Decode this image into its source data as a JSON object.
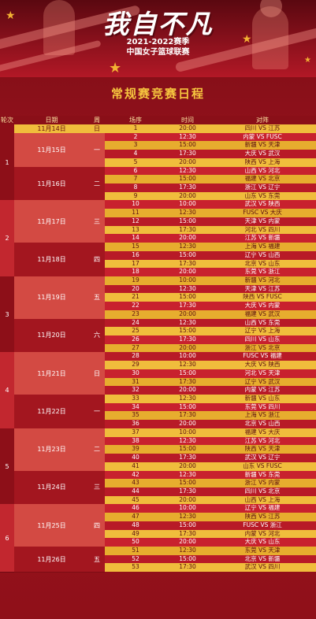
{
  "header": {
    "headline": "我自不凡",
    "season": "2021-2022赛季",
    "league": "中国女子篮球联赛"
  },
  "schedule_title": "常规赛竞赛日程",
  "columns": [
    "轮次",
    "日期",
    "周",
    "场序",
    "时间",
    "对阵"
  ],
  "colors": {
    "yellow_row": "#f0bd3c",
    "yellow_row_alt": "#e7ad2e",
    "red_row": "#c8212e",
    "red_row_alt": "#b81a27",
    "day_block_light": "#d34a43",
    "day_block_dark": "#a3161f",
    "round_dark": "#8d0f18",
    "round_light": "#c2272f",
    "accent_gold": "#f6c53f"
  },
  "rounds": [
    {
      "label": "1",
      "first": 0,
      "last": 8
    },
    {
      "label": "2",
      "first": 9,
      "last": 17
    },
    {
      "label": "3",
      "first": 18,
      "last": 26
    },
    {
      "label": "4",
      "first": 27,
      "last": 35
    },
    {
      "label": "5",
      "first": 36,
      "last": 44
    },
    {
      "label": "6",
      "first": 45,
      "last": 52
    }
  ],
  "days": [
    {
      "date": "11月14日",
      "weekday": "日",
      "first": 0,
      "last": 0
    },
    {
      "date": "11月15日",
      "weekday": "一",
      "first": 1,
      "last": 4
    },
    {
      "date": "11月16日",
      "weekday": "二",
      "first": 5,
      "last": 8
    },
    {
      "date": "11月17日",
      "weekday": "三",
      "first": 9,
      "last": 13
    },
    {
      "date": "11月18日",
      "weekday": "四",
      "first": 14,
      "last": 17
    },
    {
      "date": "11月19日",
      "weekday": "五",
      "first": 18,
      "last": 22
    },
    {
      "date": "11月20日",
      "weekday": "六",
      "first": 23,
      "last": 26
    },
    {
      "date": "11月21日",
      "weekday": "日",
      "first": 27,
      "last": 31
    },
    {
      "date": "11月22日",
      "weekday": "一",
      "first": 32,
      "last": 35
    },
    {
      "date": "11月23日",
      "weekday": "二",
      "first": 36,
      "last": 40
    },
    {
      "date": "11月24日",
      "weekday": "三",
      "first": 41,
      "last": 44
    },
    {
      "date": "11月25日",
      "weekday": "四",
      "first": 45,
      "last": 49
    },
    {
      "date": "11月26日",
      "weekday": "五",
      "first": 50,
      "last": 52
    }
  ],
  "games": [
    {
      "no": "1",
      "time": "20:00",
      "matchup": "四川 VS 江苏"
    },
    {
      "no": "2",
      "time": "12:30",
      "matchup": "内蒙 VS FUSC"
    },
    {
      "no": "3",
      "time": "15:00",
      "matchup": "新疆 VS 天津"
    },
    {
      "no": "4",
      "time": "17:30",
      "matchup": "大庆 VS 武汉"
    },
    {
      "no": "5",
      "time": "20:00",
      "matchup": "陕西 VS 上海"
    },
    {
      "no": "6",
      "time": "12:30",
      "matchup": "山西 VS 河北"
    },
    {
      "no": "7",
      "time": "15:00",
      "matchup": "福建 VS 北京"
    },
    {
      "no": "8",
      "time": "17:30",
      "matchup": "浙江 VS 辽宁"
    },
    {
      "no": "9",
      "time": "20:00",
      "matchup": "山东 VS 东莞"
    },
    {
      "no": "10",
      "time": "10:00",
      "matchup": "武汉 VS 陕西"
    },
    {
      "no": "11",
      "time": "12:30",
      "matchup": "FUSC VS 大庆"
    },
    {
      "no": "12",
      "time": "15:00",
      "matchup": "天津 VS 内蒙"
    },
    {
      "no": "13",
      "time": "17:30",
      "matchup": "河北 VS 四川"
    },
    {
      "no": "14",
      "time": "20:00",
      "matchup": "江苏 VS 新疆"
    },
    {
      "no": "15",
      "time": "12:30",
      "matchup": "上海 VS 福建"
    },
    {
      "no": "16",
      "time": "15:00",
      "matchup": "辽宁 VS 山西"
    },
    {
      "no": "17",
      "time": "17:30",
      "matchup": "北京 VS 山东"
    },
    {
      "no": "18",
      "time": "20:00",
      "matchup": "东莞 VS 浙江"
    },
    {
      "no": "19",
      "time": "10:00",
      "matchup": "新疆 VS 河北"
    },
    {
      "no": "20",
      "time": "12:30",
      "matchup": "天津 VS 江苏"
    },
    {
      "no": "21",
      "time": "15:00",
      "matchup": "陕西 VS FUSC"
    },
    {
      "no": "22",
      "time": "17:30",
      "matchup": "大庆 VS 内蒙"
    },
    {
      "no": "23",
      "time": "20:00",
      "matchup": "福建 VS 武汉"
    },
    {
      "no": "24",
      "time": "12:30",
      "matchup": "山西 VS 东莞"
    },
    {
      "no": "25",
      "time": "15:00",
      "matchup": "辽宁 VS 上海"
    },
    {
      "no": "26",
      "time": "17:30",
      "matchup": "四川 VS 山东"
    },
    {
      "no": "27",
      "time": "20:00",
      "matchup": "浙江 VS 北京"
    },
    {
      "no": "28",
      "time": "10:00",
      "matchup": "FUSC VS 福建"
    },
    {
      "no": "29",
      "time": "12:30",
      "matchup": "大庆 VS 陕西"
    },
    {
      "no": "30",
      "time": "15:00",
      "matchup": "河北 VS 天津"
    },
    {
      "no": "31",
      "time": "17:30",
      "matchup": "辽宁 VS 武汉"
    },
    {
      "no": "32",
      "time": "20:00",
      "matchup": "内蒙 VS 江苏"
    },
    {
      "no": "33",
      "time": "12:30",
      "matchup": "新疆 VS 山东"
    },
    {
      "no": "34",
      "time": "15:00",
      "matchup": "东莞 VS 四川"
    },
    {
      "no": "35",
      "time": "17:30",
      "matchup": "上海 VS 浙江"
    },
    {
      "no": "36",
      "time": "20:00",
      "matchup": "北京 VS 山西"
    },
    {
      "no": "37",
      "time": "10:00",
      "matchup": "福建 VS 大庆"
    },
    {
      "no": "38",
      "time": "12:30",
      "matchup": "江苏 VS 河北"
    },
    {
      "no": "39",
      "time": "15:00",
      "matchup": "陕西 VS 天津"
    },
    {
      "no": "40",
      "time": "17:30",
      "matchup": "武汉 VS 辽宁"
    },
    {
      "no": "41",
      "time": "20:00",
      "matchup": "山东 VS FUSC"
    },
    {
      "no": "42",
      "time": "12:30",
      "matchup": "新疆 VS 东莞"
    },
    {
      "no": "43",
      "time": "15:00",
      "matchup": "浙江 VS 内蒙"
    },
    {
      "no": "44",
      "time": "17:30",
      "matchup": "四川 VS 北京"
    },
    {
      "no": "45",
      "time": "20:00",
      "matchup": "山西 VS 上海"
    },
    {
      "no": "46",
      "time": "10:00",
      "matchup": "辽宁 VS 福建"
    },
    {
      "no": "47",
      "time": "12:30",
      "matchup": "陕西 VS 江苏"
    },
    {
      "no": "48",
      "time": "15:00",
      "matchup": "FUSC VS 浙江"
    },
    {
      "no": "49",
      "time": "17:30",
      "matchup": "内蒙 VS 河北"
    },
    {
      "no": "50",
      "time": "20:00",
      "matchup": "大庆 VS 山东"
    },
    {
      "no": "51",
      "time": "12:30",
      "matchup": "东莞 VS 天津"
    },
    {
      "no": "52",
      "time": "15:00",
      "matchup": "北京 VS 新疆"
    },
    {
      "no": "53",
      "time": "17:30",
      "matchup": "武汉 VS 四川"
    }
  ]
}
